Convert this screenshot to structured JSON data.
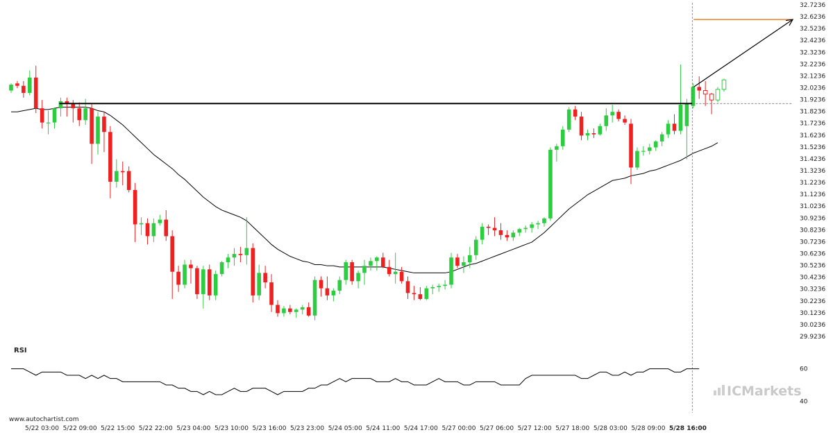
{
  "source_label": "www.autochartist.com",
  "brand_label": "ICMarkets",
  "rsi_label": "RSI",
  "colors": {
    "up": "#2ecc40",
    "down": "#ee2020",
    "sma": "#000000",
    "resistance": "#000000",
    "target": "#f08020",
    "arrow": "#000000",
    "grid_dash": "#777777"
  },
  "chart_data": {
    "type": "candlestick",
    "y_ticks": [
      "32.7236",
      "32.6236",
      "32.5236",
      "32.4236",
      "32.3236",
      "32.2236",
      "32.1236",
      "32.0236",
      "31.9236",
      "31.8236",
      "31.7236",
      "31.6236",
      "31.5236",
      "31.4236",
      "31.3236",
      "31.2236",
      "31.1236",
      "31.0236",
      "30.9236",
      "30.8236",
      "30.7236",
      "30.6236",
      "30.5236",
      "30.4236",
      "30.3236",
      "30.2236",
      "30.1236",
      "30.0236",
      "29.9236"
    ],
    "ylim": [
      29.9236,
      32.7236
    ],
    "x_ticks": [
      "5/22 03:00",
      "5/22 09:00",
      "5/22 15:00",
      "5/22 22:00",
      "5/23 04:00",
      "5/23 10:00",
      "5/23 16:00",
      "5/23 23:00",
      "5/24 05:00",
      "5/24 11:00",
      "5/24 17:00",
      "5/27 00:00",
      "5/27 06:00",
      "5/27 12:00",
      "5/27 18:00",
      "5/28 03:00",
      "5/28 09:00",
      "5/28 16:00"
    ],
    "resistance_level": 31.89,
    "target_level": 32.6,
    "current_price": 31.89,
    "rsi": {
      "ticks": [
        "60",
        "40"
      ],
      "ylim": [
        35,
        65
      ],
      "values": [
        60,
        60,
        60,
        58,
        56,
        58,
        58,
        58,
        58,
        56,
        56,
        56,
        54,
        56,
        54,
        56,
        54,
        54,
        52,
        52,
        52,
        52,
        52,
        52,
        52,
        50,
        50,
        48,
        48,
        46,
        46,
        44,
        46,
        44,
        44,
        46,
        48,
        46,
        46,
        48,
        48,
        48,
        46,
        44,
        46,
        46,
        46,
        46,
        48,
        48,
        50,
        50,
        52,
        54,
        52,
        54,
        54,
        54,
        54,
        52,
        52,
        52,
        54,
        52,
        52,
        50,
        50,
        50,
        52,
        54,
        52,
        52,
        52,
        50,
        50,
        52,
        52,
        52,
        52,
        50,
        50,
        50,
        50,
        54,
        56,
        56,
        56,
        56,
        56,
        56,
        56,
        56,
        54,
        54,
        56,
        58,
        58,
        56,
        56,
        58,
        56,
        58,
        58,
        60,
        60,
        60,
        60,
        58,
        58,
        60,
        60,
        60
      ]
    },
    "candles": [
      {
        "o": 32.0,
        "h": 32.06,
        "l": 31.98,
        "c": 32.05
      },
      {
        "o": 32.06,
        "h": 32.08,
        "l": 32.02,
        "c": 32.04
      },
      {
        "o": 32.04,
        "h": 32.08,
        "l": 31.94,
        "c": 31.98
      },
      {
        "o": 31.98,
        "h": 32.17,
        "l": 31.96,
        "c": 32.11
      },
      {
        "o": 32.11,
        "h": 32.21,
        "l": 31.81,
        "c": 31.85
      },
      {
        "o": 31.85,
        "h": 31.92,
        "l": 31.68,
        "c": 31.73
      },
      {
        "o": 31.73,
        "h": 31.83,
        "l": 31.63,
        "c": 31.73
      },
      {
        "o": 31.73,
        "h": 31.83,
        "l": 31.68,
        "c": 31.85
      },
      {
        "o": 31.85,
        "h": 31.94,
        "l": 31.78,
        "c": 31.91
      },
      {
        "o": 31.91,
        "h": 31.94,
        "l": 31.78,
        "c": 31.89
      },
      {
        "o": 31.89,
        "h": 31.92,
        "l": 31.73,
        "c": 31.85
      },
      {
        "o": 31.85,
        "h": 31.9,
        "l": 31.7,
        "c": 31.75
      },
      {
        "o": 31.75,
        "h": 31.93,
        "l": 31.71,
        "c": 31.85
      },
      {
        "o": 31.85,
        "h": 31.89,
        "l": 31.38,
        "c": 31.55
      },
      {
        "o": 31.55,
        "h": 31.82,
        "l": 31.46,
        "c": 31.78
      },
      {
        "o": 31.78,
        "h": 31.82,
        "l": 31.48,
        "c": 31.65
      },
      {
        "o": 31.65,
        "h": 31.7,
        "l": 31.09,
        "c": 31.23
      },
      {
        "o": 31.23,
        "h": 31.42,
        "l": 31.18,
        "c": 31.32
      },
      {
        "o": 31.32,
        "h": 31.4,
        "l": 31.2,
        "c": 31.31
      },
      {
        "o": 31.32,
        "h": 31.36,
        "l": 31.14,
        "c": 31.16
      },
      {
        "o": 31.16,
        "h": 31.22,
        "l": 30.72,
        "c": 30.87
      },
      {
        "o": 30.87,
        "h": 30.93,
        "l": 30.78,
        "c": 30.88
      },
      {
        "o": 30.88,
        "h": 30.92,
        "l": 30.7,
        "c": 30.77
      },
      {
        "o": 30.77,
        "h": 30.92,
        "l": 30.72,
        "c": 30.88
      },
      {
        "o": 30.88,
        "h": 30.95,
        "l": 30.86,
        "c": 30.91
      },
      {
        "o": 30.91,
        "h": 30.99,
        "l": 30.73,
        "c": 30.77
      },
      {
        "o": 30.77,
        "h": 30.82,
        "l": 30.24,
        "c": 30.47
      },
      {
        "o": 30.47,
        "h": 30.52,
        "l": 30.3,
        "c": 30.36
      },
      {
        "o": 30.36,
        "h": 30.57,
        "l": 30.33,
        "c": 30.53
      },
      {
        "o": 30.53,
        "h": 30.57,
        "l": 30.37,
        "c": 30.5
      },
      {
        "o": 30.5,
        "h": 30.52,
        "l": 30.24,
        "c": 30.28
      },
      {
        "o": 30.28,
        "h": 30.52,
        "l": 30.16,
        "c": 30.49
      },
      {
        "o": 30.49,
        "h": 30.53,
        "l": 30.23,
        "c": 30.27
      },
      {
        "o": 30.27,
        "h": 30.48,
        "l": 30.23,
        "c": 30.45
      },
      {
        "o": 30.45,
        "h": 30.56,
        "l": 30.43,
        "c": 30.55
      },
      {
        "o": 30.55,
        "h": 30.62,
        "l": 30.5,
        "c": 30.59
      },
      {
        "o": 30.59,
        "h": 30.67,
        "l": 30.52,
        "c": 30.62
      },
      {
        "o": 30.62,
        "h": 30.68,
        "l": 30.55,
        "c": 30.61
      },
      {
        "o": 30.61,
        "h": 30.93,
        "l": 30.53,
        "c": 30.67
      },
      {
        "o": 30.67,
        "h": 30.71,
        "l": 30.21,
        "c": 30.27
      },
      {
        "o": 30.27,
        "h": 30.53,
        "l": 30.23,
        "c": 30.46
      },
      {
        "o": 30.46,
        "h": 30.52,
        "l": 30.33,
        "c": 30.38
      },
      {
        "o": 30.38,
        "h": 30.45,
        "l": 30.13,
        "c": 30.19
      },
      {
        "o": 30.19,
        "h": 30.23,
        "l": 30.09,
        "c": 30.12
      },
      {
        "o": 30.12,
        "h": 30.18,
        "l": 30.09,
        "c": 30.16
      },
      {
        "o": 30.16,
        "h": 30.19,
        "l": 30.11,
        "c": 30.13
      },
      {
        "o": 30.13,
        "h": 30.16,
        "l": 30.08,
        "c": 30.15
      },
      {
        "o": 30.15,
        "h": 30.19,
        "l": 30.11,
        "c": 30.17
      },
      {
        "o": 30.17,
        "h": 30.21,
        "l": 30.09,
        "c": 30.1
      },
      {
        "o": 30.1,
        "h": 30.43,
        "l": 30.06,
        "c": 30.4
      },
      {
        "o": 30.4,
        "h": 30.43,
        "l": 30.26,
        "c": 30.33
      },
      {
        "o": 30.33,
        "h": 30.43,
        "l": 30.23,
        "c": 30.27
      },
      {
        "o": 30.27,
        "h": 30.33,
        "l": 30.22,
        "c": 30.31
      },
      {
        "o": 30.31,
        "h": 30.43,
        "l": 30.28,
        "c": 30.4
      },
      {
        "o": 30.4,
        "h": 30.57,
        "l": 30.36,
        "c": 30.55
      },
      {
        "o": 30.55,
        "h": 30.57,
        "l": 30.36,
        "c": 30.39
      },
      {
        "o": 30.39,
        "h": 30.48,
        "l": 30.33,
        "c": 30.46
      },
      {
        "o": 30.46,
        "h": 30.57,
        "l": 30.36,
        "c": 30.52
      },
      {
        "o": 30.52,
        "h": 30.59,
        "l": 30.48,
        "c": 30.56
      },
      {
        "o": 30.56,
        "h": 30.6,
        "l": 30.48,
        "c": 30.59
      },
      {
        "o": 30.59,
        "h": 30.63,
        "l": 30.5,
        "c": 30.51
      },
      {
        "o": 30.51,
        "h": 30.57,
        "l": 30.43,
        "c": 30.45
      },
      {
        "o": 30.45,
        "h": 30.63,
        "l": 30.37,
        "c": 30.47
      },
      {
        "o": 30.47,
        "h": 30.51,
        "l": 30.37,
        "c": 30.39
      },
      {
        "o": 30.39,
        "h": 30.43,
        "l": 30.24,
        "c": 30.29
      },
      {
        "o": 30.29,
        "h": 30.35,
        "l": 30.23,
        "c": 30.28
      },
      {
        "o": 30.28,
        "h": 30.34,
        "l": 30.23,
        "c": 30.24
      },
      {
        "o": 30.24,
        "h": 30.35,
        "l": 30.23,
        "c": 30.33
      },
      {
        "o": 30.33,
        "h": 30.36,
        "l": 30.28,
        "c": 30.34
      },
      {
        "o": 30.34,
        "h": 30.37,
        "l": 30.3,
        "c": 30.35
      },
      {
        "o": 30.35,
        "h": 30.4,
        "l": 30.32,
        "c": 30.36
      },
      {
        "o": 30.36,
        "h": 30.63,
        "l": 30.33,
        "c": 30.59
      },
      {
        "o": 30.59,
        "h": 30.62,
        "l": 30.5,
        "c": 30.52
      },
      {
        "o": 30.52,
        "h": 30.6,
        "l": 30.46,
        "c": 30.55
      },
      {
        "o": 30.55,
        "h": 30.68,
        "l": 30.5,
        "c": 30.61
      },
      {
        "o": 30.61,
        "h": 30.77,
        "l": 30.57,
        "c": 30.74
      },
      {
        "o": 30.74,
        "h": 30.88,
        "l": 30.7,
        "c": 30.85
      },
      {
        "o": 30.85,
        "h": 30.87,
        "l": 30.78,
        "c": 30.84
      },
      {
        "o": 30.84,
        "h": 30.93,
        "l": 30.77,
        "c": 30.82
      },
      {
        "o": 30.82,
        "h": 30.88,
        "l": 30.74,
        "c": 30.78
      },
      {
        "o": 30.78,
        "h": 30.82,
        "l": 30.73,
        "c": 30.76
      },
      {
        "o": 30.76,
        "h": 30.82,
        "l": 30.73,
        "c": 30.8
      },
      {
        "o": 30.8,
        "h": 30.84,
        "l": 30.77,
        "c": 30.83
      },
      {
        "o": 30.83,
        "h": 30.86,
        "l": 30.8,
        "c": 30.84
      },
      {
        "o": 30.84,
        "h": 30.89,
        "l": 30.8,
        "c": 30.87
      },
      {
        "o": 30.87,
        "h": 30.9,
        "l": 30.83,
        "c": 30.88
      },
      {
        "o": 30.88,
        "h": 30.93,
        "l": 30.85,
        "c": 30.92
      },
      {
        "o": 30.92,
        "h": 31.52,
        "l": 30.9,
        "c": 31.5
      },
      {
        "o": 31.5,
        "h": 31.55,
        "l": 31.4,
        "c": 31.53
      },
      {
        "o": 31.53,
        "h": 31.7,
        "l": 31.5,
        "c": 31.67
      },
      {
        "o": 31.67,
        "h": 31.86,
        "l": 31.65,
        "c": 31.84
      },
      {
        "o": 31.84,
        "h": 31.87,
        "l": 31.75,
        "c": 31.78
      },
      {
        "o": 31.78,
        "h": 31.82,
        "l": 31.58,
        "c": 31.62
      },
      {
        "o": 31.62,
        "h": 31.67,
        "l": 31.58,
        "c": 31.64
      },
      {
        "o": 31.64,
        "h": 31.68,
        "l": 31.6,
        "c": 31.63
      },
      {
        "o": 31.63,
        "h": 31.72,
        "l": 31.62,
        "c": 31.7
      },
      {
        "o": 31.7,
        "h": 31.85,
        "l": 31.66,
        "c": 31.79
      },
      {
        "o": 31.79,
        "h": 31.88,
        "l": 31.73,
        "c": 31.82
      },
      {
        "o": 31.82,
        "h": 31.84,
        "l": 31.74,
        "c": 31.76
      },
      {
        "o": 31.76,
        "h": 31.79,
        "l": 31.71,
        "c": 31.73
      },
      {
        "o": 31.72,
        "h": 31.76,
        "l": 31.21,
        "c": 31.35
      },
      {
        "o": 31.35,
        "h": 31.52,
        "l": 31.33,
        "c": 31.49
      },
      {
        "o": 31.49,
        "h": 31.53,
        "l": 31.45,
        "c": 31.49
      },
      {
        "o": 31.49,
        "h": 31.55,
        "l": 31.46,
        "c": 31.52
      },
      {
        "o": 31.52,
        "h": 31.58,
        "l": 31.49,
        "c": 31.57
      },
      {
        "o": 31.57,
        "h": 31.65,
        "l": 31.53,
        "c": 31.63
      },
      {
        "o": 31.63,
        "h": 31.75,
        "l": 31.6,
        "c": 31.72
      },
      {
        "o": 31.72,
        "h": 31.8,
        "l": 31.63,
        "c": 31.66
      },
      {
        "o": 31.66,
        "h": 32.22,
        "l": 31.63,
        "c": 31.88
      },
      {
        "o": 31.7,
        "h": 31.93,
        "l": 31.42,
        "c": 31.89
      },
      {
        "o": 31.87,
        "h": 32.06,
        "l": 31.85,
        "c": 32.03
      },
      {
        "o": 32.03,
        "h": 32.12,
        "l": 31.93,
        "c": 32.0
      },
      {
        "o": 32.0,
        "h": 32.08,
        "l": 31.87,
        "c": 31.97
      },
      {
        "o": 31.97,
        "h": 31.98,
        "l": 31.8,
        "c": 31.92
      },
      {
        "o": 31.92,
        "h": 32.03,
        "l": 31.9,
        "c": 32.01
      },
      {
        "o": 32.01,
        "h": 32.1,
        "l": 31.99,
        "c": 32.09
      }
    ],
    "sma": [
      31.82,
      31.82,
      31.83,
      31.84,
      31.85,
      31.84,
      31.84,
      31.85,
      31.86,
      31.86,
      31.86,
      31.86,
      31.86,
      31.85,
      31.83,
      31.82,
      31.79,
      31.75,
      31.71,
      31.66,
      31.61,
      31.56,
      31.51,
      31.46,
      31.42,
      31.38,
      31.34,
      31.29,
      31.25,
      31.2,
      31.15,
      31.1,
      31.06,
      31.02,
      30.99,
      30.97,
      30.95,
      30.93,
      30.9,
      30.85,
      30.8,
      30.75,
      30.7,
      30.66,
      30.63,
      30.6,
      30.58,
      30.56,
      30.55,
      30.53,
      30.53,
      30.52,
      30.52,
      30.51,
      30.51,
      30.51,
      30.51,
      30.51,
      30.51,
      30.51,
      30.51,
      30.5,
      30.49,
      30.48,
      30.47,
      30.46,
      30.46,
      30.46,
      30.46,
      30.46,
      30.46,
      30.47,
      30.49,
      30.51,
      30.53,
      30.54,
      30.56,
      30.58,
      30.6,
      30.62,
      30.64,
      30.66,
      30.68,
      30.7,
      30.72,
      30.76,
      30.8,
      30.85,
      30.9,
      30.95,
      31.0,
      31.04,
      31.08,
      31.12,
      31.15,
      31.18,
      31.21,
      31.24,
      31.25,
      31.26,
      31.28,
      31.29,
      31.3,
      31.32,
      31.33,
      31.35,
      31.37,
      31.39,
      31.41,
      31.44,
      31.47,
      31.49,
      31.51,
      31.53,
      31.56
    ]
  }
}
